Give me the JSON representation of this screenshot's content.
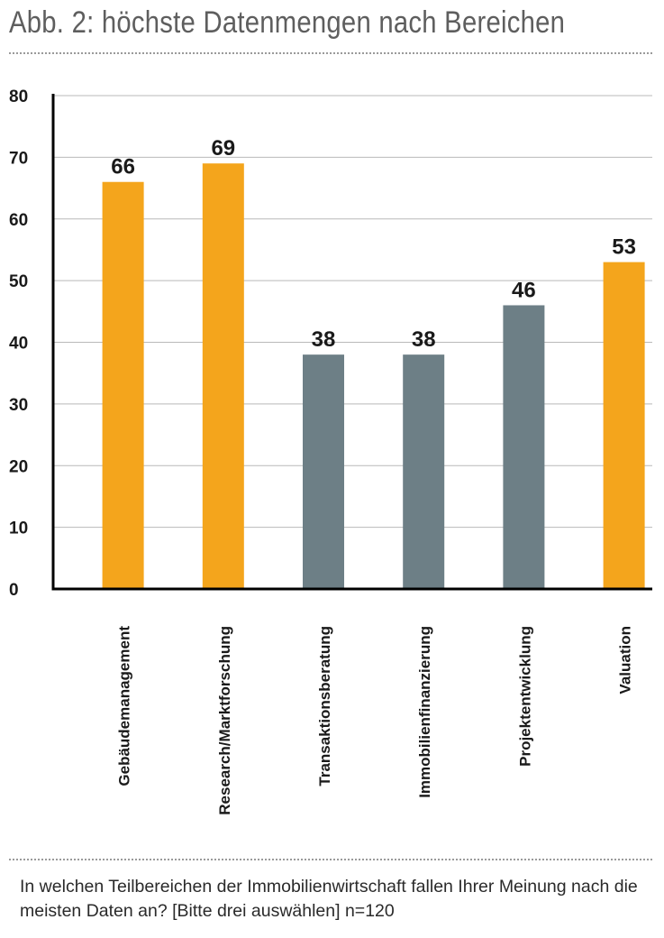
{
  "header": {
    "title": "Abb. 2: höchste Datenmengen nach Bereichen"
  },
  "footer": {
    "caption": "In welchen Teilbereichen der Immobilienwirtschaft fallen Ihrer Meinung nach die meisten Daten an? [Bitte drei auswählen] n=120"
  },
  "chart_data": {
    "type": "bar",
    "title": "Abb. 2: höchste Datenmengen nach Bereichen",
    "xlabel": "",
    "ylabel": "",
    "categories": [
      "Gebäudemanagement",
      "Research/Marktforschung",
      "Transaktionsberatung",
      "Immobilienfinanzierung",
      "Projektentwicklung",
      "Valuation"
    ],
    "values": [
      66,
      69,
      38,
      38,
      46,
      53
    ],
    "bar_colors": [
      "#f4a51c",
      "#f4a51c",
      "#6d7f86",
      "#6d7f86",
      "#6d7f86",
      "#f4a51c"
    ],
    "ylim": [
      0,
      80
    ],
    "yticks": [
      0,
      10,
      20,
      30,
      40,
      50,
      60,
      70,
      80
    ],
    "grid": true,
    "data_labels": true,
    "legend": "none"
  }
}
